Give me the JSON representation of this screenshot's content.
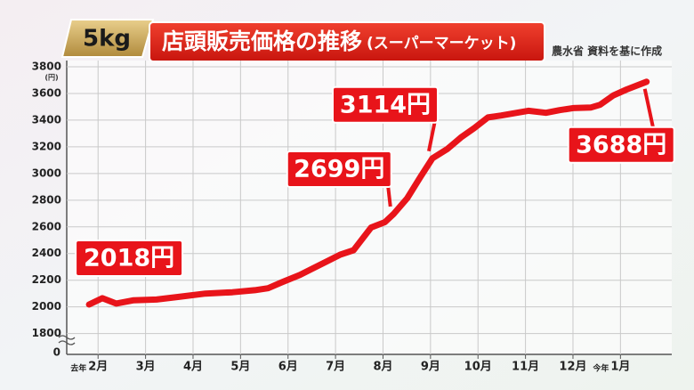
{
  "chart_data": {
    "type": "line",
    "badge": "5kg",
    "title": "店頭販売価格の推移",
    "subtitle": "(スーパーマーケット)",
    "source": "農水省 資料を基に作成",
    "y_unit": "(円)",
    "y_break_label": "0",
    "xlim": [
      1.34,
      14.08
    ],
    "xticks": [
      {
        "value": 2,
        "label": "2月",
        "prefix": "去年"
      },
      {
        "value": 3,
        "label": "3月"
      },
      {
        "value": 4,
        "label": "4月"
      },
      {
        "value": 5,
        "label": "5月"
      },
      {
        "value": 6,
        "label": "6月"
      },
      {
        "value": 7,
        "label": "7月"
      },
      {
        "value": 8,
        "label": "8月"
      },
      {
        "value": 9,
        "label": "9月"
      },
      {
        "value": 10,
        "label": "10月"
      },
      {
        "value": 11,
        "label": "11月"
      },
      {
        "value": 12,
        "label": "12月"
      },
      {
        "value": 13,
        "label": "1月",
        "prefix": "今年"
      }
    ],
    "ylim": [
      1644,
      3800
    ],
    "yticks": [
      1800,
      2000,
      2200,
      2400,
      2600,
      2800,
      3000,
      3200,
      3400,
      3600,
      3800
    ],
    "grid": true,
    "series": [
      {
        "color": "#e8141a",
        "x": [
          1.81,
          2.09,
          2.38,
          2.75,
          3.23,
          3.7,
          4.26,
          4.83,
          5.3,
          5.58,
          5.87,
          6.25,
          6.53,
          6.81,
          7.09,
          7.38,
          7.75,
          8.04,
          8.23,
          8.51,
          8.79,
          9.04,
          9.36,
          9.64,
          9.92,
          10.21,
          10.49,
          11.06,
          11.43,
          11.72,
          12.0,
          12.38,
          12.57,
          12.85,
          13.13,
          13.55
        ],
        "values": [
          2018,
          2065,
          2025,
          2050,
          2055,
          2075,
          2100,
          2110,
          2125,
          2140,
          2185,
          2240,
          2290,
          2340,
          2390,
          2425,
          2595,
          2635,
          2699,
          2815,
          2975,
          3114,
          3185,
          3270,
          3340,
          3420,
          3435,
          3470,
          3455,
          3475,
          3490,
          3495,
          3515,
          3585,
          3630,
          3688
        ]
      }
    ],
    "callouts": [
      {
        "index": 0,
        "label": "2018円"
      },
      {
        "index": 18,
        "label": "2699円"
      },
      {
        "index": 21,
        "label": "3114円"
      },
      {
        "index": 35,
        "label": "3688円"
      }
    ]
  }
}
